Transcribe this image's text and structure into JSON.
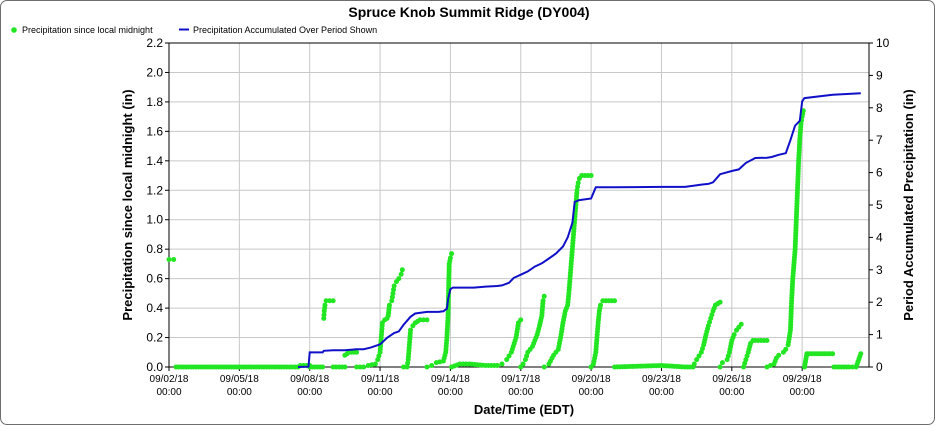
{
  "chart_data": {
    "type": "scatter",
    "title": "Spruce Knob Summit Ridge (DY004)",
    "xlabel": "Date/Time (EDT)",
    "ylabel_left": "Precipitation since local midnight (in)",
    "ylabel_right": "Period Accumulated Precipitation (in)",
    "ylim_left": [
      0,
      2.2
    ],
    "ylim_right": [
      0,
      10
    ],
    "left_ticks": [
      "0.0",
      "0.2",
      "0.4",
      "0.6",
      "0.8",
      "1.0",
      "1.2",
      "1.4",
      "1.6",
      "1.8",
      "2.0",
      "2.2"
    ],
    "right_ticks": [
      "0",
      "1",
      "2",
      "3",
      "4",
      "5",
      "6",
      "7",
      "8",
      "9",
      "10"
    ],
    "x_ticks": [
      {
        "date": "09/02/18",
        "time": "00:00"
      },
      {
        "date": "09/05/18",
        "time": "00:00"
      },
      {
        "date": "09/08/18",
        "time": "00:00"
      },
      {
        "date": "09/11/18",
        "time": "00:00"
      },
      {
        "date": "09/14/18",
        "time": "00:00"
      },
      {
        "date": "09/17/18",
        "time": "00:00"
      },
      {
        "date": "09/20/18",
        "time": "00:00"
      },
      {
        "date": "09/23/18",
        "time": "00:00"
      },
      {
        "date": "09/26/18",
        "time": "00:00"
      },
      {
        "date": "09/29/18",
        "time": "00:00"
      }
    ],
    "x_range_days": [
      0,
      29.85
    ],
    "grid": true,
    "legend_position": "top-left",
    "colors": {
      "daily": "#22e622",
      "accumulated": "#1010c8",
      "grid": "#c8c8c8"
    },
    "series": [
      {
        "name": "Precipitation since local midnight",
        "kind": "points",
        "axis": "left",
        "segments": [
          [
            [
              0.0,
              0.73
            ],
            [
              0.2,
              0.73
            ]
          ],
          [
            [
              0.3,
              0.0
            ],
            [
              4.8,
              0.0
            ],
            [
              5.5,
              0.0
            ],
            [
              5.6,
              0.01
            ],
            [
              6.0,
              0.01
            ]
          ],
          [
            [
              6.0,
              0.0
            ],
            [
              6.55,
              0.0
            ]
          ],
          [
            [
              6.6,
              0.33
            ],
            [
              6.62,
              0.38
            ],
            [
              6.65,
              0.42
            ],
            [
              6.7,
              0.45
            ],
            [
              7.0,
              0.45
            ]
          ],
          [
            [
              7.0,
              0.0
            ],
            [
              7.5,
              0.0
            ]
          ],
          [
            [
              7.5,
              0.08
            ],
            [
              7.6,
              0.09
            ],
            [
              7.65,
              0.1
            ],
            [
              8.0,
              0.1
            ]
          ],
          [
            [
              8.0,
              0.0
            ],
            [
              8.3,
              0.0
            ],
            [
              8.5,
              0.01
            ],
            [
              8.8,
              0.02
            ],
            [
              8.9,
              0.05
            ],
            [
              9.0,
              0.1
            ],
            [
              9.05,
              0.2
            ],
            [
              9.1,
              0.3
            ],
            [
              9.2,
              0.32
            ],
            [
              9.3,
              0.33
            ],
            [
              9.35,
              0.35
            ],
            [
              9.4,
              0.42
            ],
            [
              9.5,
              0.45
            ],
            [
              9.55,
              0.5
            ],
            [
              9.6,
              0.55
            ],
            [
              9.7,
              0.58
            ],
            [
              9.8,
              0.6
            ],
            [
              9.9,
              0.63
            ],
            [
              9.95,
              0.66
            ]
          ],
          [
            [
              10.0,
              0.0
            ],
            [
              10.15,
              0.0
            ],
            [
              10.2,
              0.05
            ],
            [
              10.25,
              0.15
            ],
            [
              10.3,
              0.25
            ],
            [
              10.4,
              0.28
            ],
            [
              10.5,
              0.3
            ],
            [
              10.6,
              0.31
            ],
            [
              10.7,
              0.32
            ],
            [
              11.0,
              0.32
            ]
          ],
          [
            [
              11.0,
              0.0
            ],
            [
              11.2,
              0.01
            ],
            [
              11.4,
              0.03
            ],
            [
              11.7,
              0.04
            ],
            [
              11.8,
              0.1
            ],
            [
              11.85,
              0.2
            ],
            [
              11.9,
              0.35
            ],
            [
              11.92,
              0.5
            ],
            [
              11.95,
              0.7
            ],
            [
              12.0,
              0.74
            ],
            [
              12.05,
              0.77
            ]
          ],
          [
            [
              12.05,
              0.0
            ],
            [
              12.4,
              0.02
            ],
            [
              12.8,
              0.02
            ],
            [
              13.5,
              0.01
            ],
            [
              14.0,
              0.01
            ],
            [
              14.2,
              0.02
            ],
            [
              14.4,
              0.05
            ],
            [
              14.6,
              0.1
            ],
            [
              14.8,
              0.2
            ],
            [
              14.9,
              0.3
            ],
            [
              15.0,
              0.32
            ]
          ],
          [
            [
              15.0,
              0.0
            ],
            [
              15.1,
              0.02
            ],
            [
              15.2,
              0.05
            ],
            [
              15.3,
              0.1
            ],
            [
              15.4,
              0.12
            ],
            [
              15.5,
              0.14
            ],
            [
              15.6,
              0.18
            ],
            [
              15.7,
              0.22
            ],
            [
              15.8,
              0.28
            ],
            [
              15.9,
              0.35
            ],
            [
              15.95,
              0.45
            ],
            [
              16.0,
              0.48
            ]
          ],
          [
            [
              16.0,
              0.0
            ],
            [
              16.2,
              0.02
            ],
            [
              16.4,
              0.08
            ],
            [
              16.6,
              0.12
            ],
            [
              16.7,
              0.2
            ],
            [
              16.8,
              0.3
            ],
            [
              16.9,
              0.38
            ],
            [
              17.0,
              0.42
            ],
            [
              17.05,
              0.5
            ],
            [
              17.1,
              0.6
            ],
            [
              17.15,
              0.7
            ],
            [
              17.2,
              0.8
            ],
            [
              17.25,
              0.9
            ],
            [
              17.3,
              1.0
            ],
            [
              17.35,
              1.1
            ],
            [
              17.4,
              1.2
            ],
            [
              17.45,
              1.25
            ],
            [
              17.5,
              1.28
            ],
            [
              17.6,
              1.3
            ],
            [
              18.0,
              1.3
            ]
          ],
          [
            [
              18.0,
              0.0
            ],
            [
              18.1,
              0.02
            ],
            [
              18.2,
              0.1
            ],
            [
              18.25,
              0.2
            ],
            [
              18.3,
              0.3
            ],
            [
              18.35,
              0.38
            ],
            [
              18.4,
              0.42
            ],
            [
              18.5,
              0.45
            ],
            [
              19.0,
              0.45
            ]
          ],
          [
            [
              19.0,
              0.0
            ],
            [
              21.0,
              0.01
            ],
            [
              22.0,
              0.0
            ],
            [
              22.35,
              0.0
            ],
            [
              22.4,
              0.02
            ],
            [
              22.5,
              0.05
            ],
            [
              22.7,
              0.1
            ],
            [
              22.8,
              0.15
            ],
            [
              22.9,
              0.22
            ],
            [
              23.0,
              0.28
            ],
            [
              23.1,
              0.33
            ],
            [
              23.2,
              0.38
            ],
            [
              23.3,
              0.42
            ],
            [
              23.4,
              0.43
            ],
            [
              23.5,
              0.44
            ]
          ],
          [
            [
              23.5,
              0.0
            ],
            [
              23.6,
              0.03
            ],
            [
              23.8,
              0.05
            ],
            [
              23.9,
              0.1
            ],
            [
              24.0,
              0.18
            ],
            [
              24.1,
              0.22
            ],
            [
              24.2,
              0.25
            ],
            [
              24.3,
              0.27
            ],
            [
              24.4,
              0.29
            ]
          ],
          [
            [
              24.5,
              0.0
            ],
            [
              24.6,
              0.05
            ],
            [
              24.7,
              0.1
            ],
            [
              24.8,
              0.16
            ],
            [
              24.9,
              0.18
            ],
            [
              25.0,
              0.18
            ],
            [
              25.5,
              0.18
            ]
          ],
          [
            [
              25.5,
              0.0
            ],
            [
              25.8,
              0.02
            ],
            [
              25.9,
              0.06
            ],
            [
              26.0,
              0.08
            ],
            [
              26.2,
              0.1
            ],
            [
              26.3,
              0.12
            ],
            [
              26.4,
              0.15
            ],
            [
              26.5,
              0.25
            ],
            [
              26.55,
              0.45
            ],
            [
              26.6,
              0.6
            ],
            [
              26.7,
              0.8
            ],
            [
              26.75,
              1.0
            ],
            [
              26.8,
              1.2
            ],
            [
              26.85,
              1.4
            ],
            [
              26.9,
              1.55
            ],
            [
              26.95,
              1.65
            ],
            [
              27.0,
              1.7
            ],
            [
              27.05,
              1.74
            ]
          ],
          [
            [
              27.1,
              0.0
            ],
            [
              27.2,
              0.09
            ],
            [
              28.3,
              0.09
            ]
          ],
          [
            [
              28.35,
              0.0
            ],
            [
              29.0,
              0.0
            ],
            [
              29.3,
              0.0
            ],
            [
              29.5,
              0.09
            ]
          ]
        ]
      },
      {
        "name": "Precipitation Accumulated Over Period Shown",
        "kind": "line",
        "axis": "right",
        "x": [
          5.5,
          5.95,
          6.0,
          6.55,
          6.6,
          7.0,
          7.5,
          8.0,
          8.3,
          8.6,
          8.8,
          9.0,
          9.3,
          9.6,
          9.8,
          10.0,
          10.3,
          10.5,
          11.0,
          11.5,
          11.7,
          11.85,
          11.9,
          12.0,
          12.1,
          13.0,
          13.5,
          14.0,
          14.2,
          14.5,
          14.7,
          15.0,
          15.3,
          15.6,
          15.9,
          16.2,
          16.5,
          16.8,
          17.0,
          17.2,
          17.3,
          17.5,
          18.0,
          18.2,
          19.0,
          21.0,
          22.0,
          22.4,
          22.7,
          23.0,
          23.2,
          23.5,
          24.0,
          24.3,
          24.6,
          25.0,
          25.5,
          25.7,
          26.0,
          26.3,
          26.5,
          26.7,
          26.9,
          27.0,
          27.1,
          28.3,
          29.5
        ],
        "y": [
          0.0,
          0.01,
          0.45,
          0.45,
          0.5,
          0.52,
          0.52,
          0.55,
          0.55,
          0.6,
          0.65,
          0.7,
          0.9,
          1.05,
          1.1,
          1.3,
          1.55,
          1.65,
          1.7,
          1.7,
          1.72,
          1.8,
          2.1,
          2.4,
          2.45,
          2.45,
          2.48,
          2.5,
          2.52,
          2.6,
          2.75,
          2.85,
          2.95,
          3.1,
          3.2,
          3.35,
          3.5,
          3.72,
          4.0,
          4.45,
          5.1,
          5.15,
          5.2,
          5.55,
          5.55,
          5.56,
          5.56,
          5.6,
          5.63,
          5.65,
          5.7,
          5.95,
          6.05,
          6.1,
          6.3,
          6.45,
          6.46,
          6.48,
          6.55,
          6.6,
          7.0,
          7.45,
          7.6,
          8.2,
          8.3,
          8.4,
          8.45
        ]
      }
    ]
  }
}
